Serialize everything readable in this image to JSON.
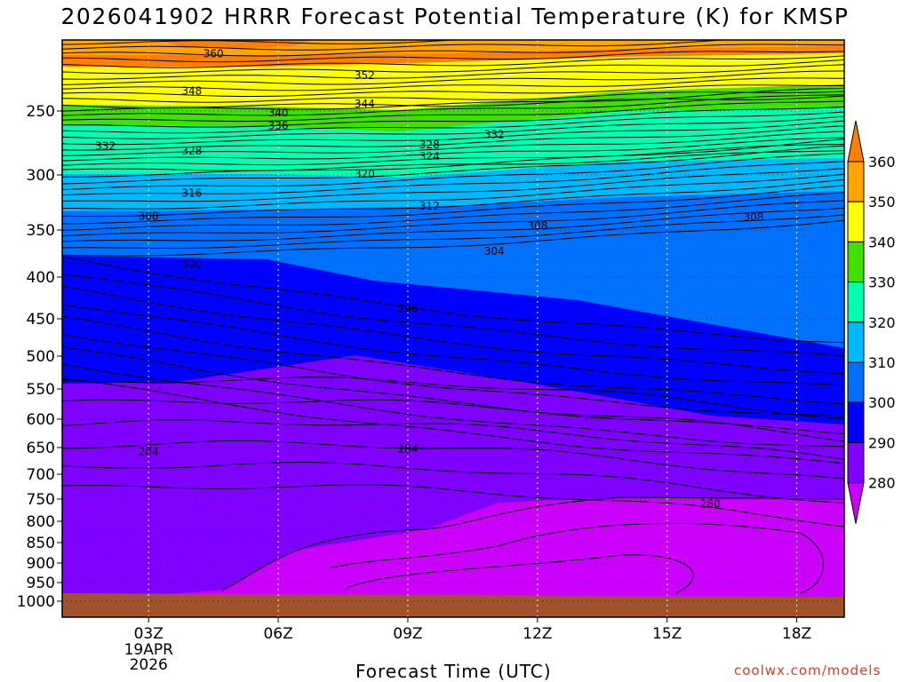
{
  "title": "2026041902 HRRR Forecast Potential Temperature (K) for KMSP",
  "credit": "coolwx.com/models",
  "chart_data": {
    "type": "heatmap",
    "title": "2026041902 HRRR Forecast Potential Temperature (K) for KMSP",
    "xlabel": "Forecast Time (UTC)",
    "ylabel": "",
    "x_ticks": [
      "03Z",
      "06Z",
      "09Z",
      "12Z",
      "15Z",
      "18Z"
    ],
    "x_first_date": [
      "19APR",
      "2026"
    ],
    "y_ticks": [
      250,
      300,
      350,
      400,
      450,
      500,
      550,
      600,
      650,
      700,
      750,
      800,
      850,
      900,
      950,
      1000
    ],
    "y_axis": "pressure (hPa), inverted, log-like",
    "colorbar": {
      "levels": [
        280,
        290,
        300,
        310,
        320,
        330,
        340,
        350,
        360
      ],
      "colors": [
        "#cc00ff",
        "#7f00ff",
        "#0000ff",
        "#0070ff",
        "#00baff",
        "#00ffb0",
        "#40e000",
        "#ffff00",
        "#ffa500",
        "#ff7f00"
      ]
    },
    "contour_labels": [
      {
        "v": "360",
        "t": 4.5,
        "p": 205
      },
      {
        "v": "352",
        "t": 8.0,
        "p": 222
      },
      {
        "v": "348",
        "t": 4.0,
        "p": 234
      },
      {
        "v": "344",
        "t": 8.0,
        "p": 244
      },
      {
        "v": "340",
        "t": 6.0,
        "p": 251
      },
      {
        "v": "336",
        "t": 6.0,
        "p": 261
      },
      {
        "v": "332",
        "t": 2.0,
        "p": 277
      },
      {
        "v": "328",
        "t": 4.0,
        "p": 281
      },
      {
        "v": "328",
        "t": 9.5,
        "p": 276
      },
      {
        "v": "324",
        "t": 9.5,
        "p": 285
      },
      {
        "v": "332",
        "t": 11.0,
        "p": 268
      },
      {
        "v": "320",
        "t": 8.0,
        "p": 299
      },
      {
        "v": "316",
        "t": 4.0,
        "p": 316
      },
      {
        "v": "312",
        "t": 9.5,
        "p": 328
      },
      {
        "v": "308",
        "t": 3.0,
        "p": 337
      },
      {
        "v": "308",
        "t": 12.0,
        "p": 346
      },
      {
        "v": "308",
        "t": 17.0,
        "p": 338
      },
      {
        "v": "304",
        "t": 11.0,
        "p": 372
      },
      {
        "v": "300",
        "t": 4.0,
        "p": 386
      },
      {
        "v": "296",
        "t": 9.0,
        "p": 437
      },
      {
        "v": "284",
        "t": 3.0,
        "p": 657
      },
      {
        "v": "284",
        "t": 9.0,
        "p": 652
      },
      {
        "v": "280",
        "t": 16.0,
        "p": 760
      }
    ],
    "grid": "dotted",
    "surface_color": "#a0522d"
  }
}
